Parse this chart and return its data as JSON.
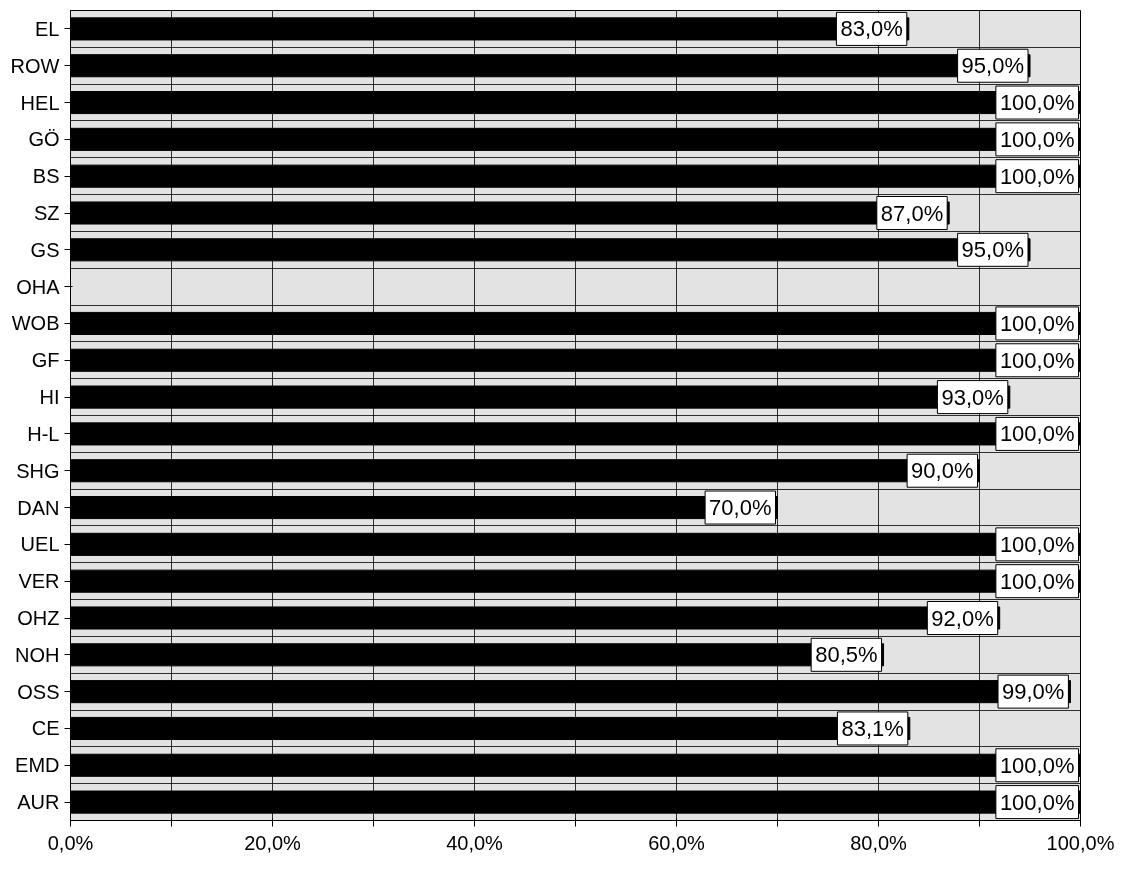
{
  "chart_data": {
    "type": "bar",
    "orientation": "horizontal",
    "categories": [
      "EL",
      "ROW",
      "HEL",
      "GÖ",
      "BS",
      "SZ",
      "GS",
      "OHA",
      "WOB",
      "GF",
      "HI",
      "H-L",
      "SHG",
      "DAN",
      "UEL",
      "VER",
      "OHZ",
      "NOH",
      "OSS",
      "CE",
      "EMD",
      "AUR"
    ],
    "values": [
      83.0,
      95.0,
      100.0,
      100.0,
      100.0,
      87.0,
      95.0,
      null,
      100.0,
      100.0,
      93.0,
      100.0,
      90.0,
      70.0,
      100.0,
      100.0,
      92.0,
      80.5,
      99.0,
      83.1,
      100.0,
      100.0
    ],
    "value_labels": [
      "83,0%",
      "95,0%",
      "100,0%",
      "100,0%",
      "100,0%",
      "87,0%",
      "95,0%",
      null,
      "100,0%",
      "100,0%",
      "93,0%",
      "100,0%",
      "90,0%",
      "70,0%",
      "100,0%",
      "100,0%",
      "92,0%",
      "80,5%",
      "99,0%",
      "83,1%",
      "100,0%",
      "100,0%"
    ],
    "color": "#000000",
    "xlim": [
      0,
      100
    ],
    "xticks": [
      {
        "value": 0,
        "label": "0,0%"
      },
      {
        "value": 10,
        "label": null
      },
      {
        "value": 20,
        "label": "20,0%"
      },
      {
        "value": 30,
        "label": null
      },
      {
        "value": 40,
        "label": "40,0%"
      },
      {
        "value": 50,
        "label": null
      },
      {
        "value": 60,
        "label": "60,0%"
      },
      {
        "value": 70,
        "label": null
      },
      {
        "value": 80,
        "label": "80,0%"
      },
      {
        "value": 90,
        "label": null
      },
      {
        "value": 100,
        "label": "100,0%"
      }
    ],
    "grid": true
  }
}
